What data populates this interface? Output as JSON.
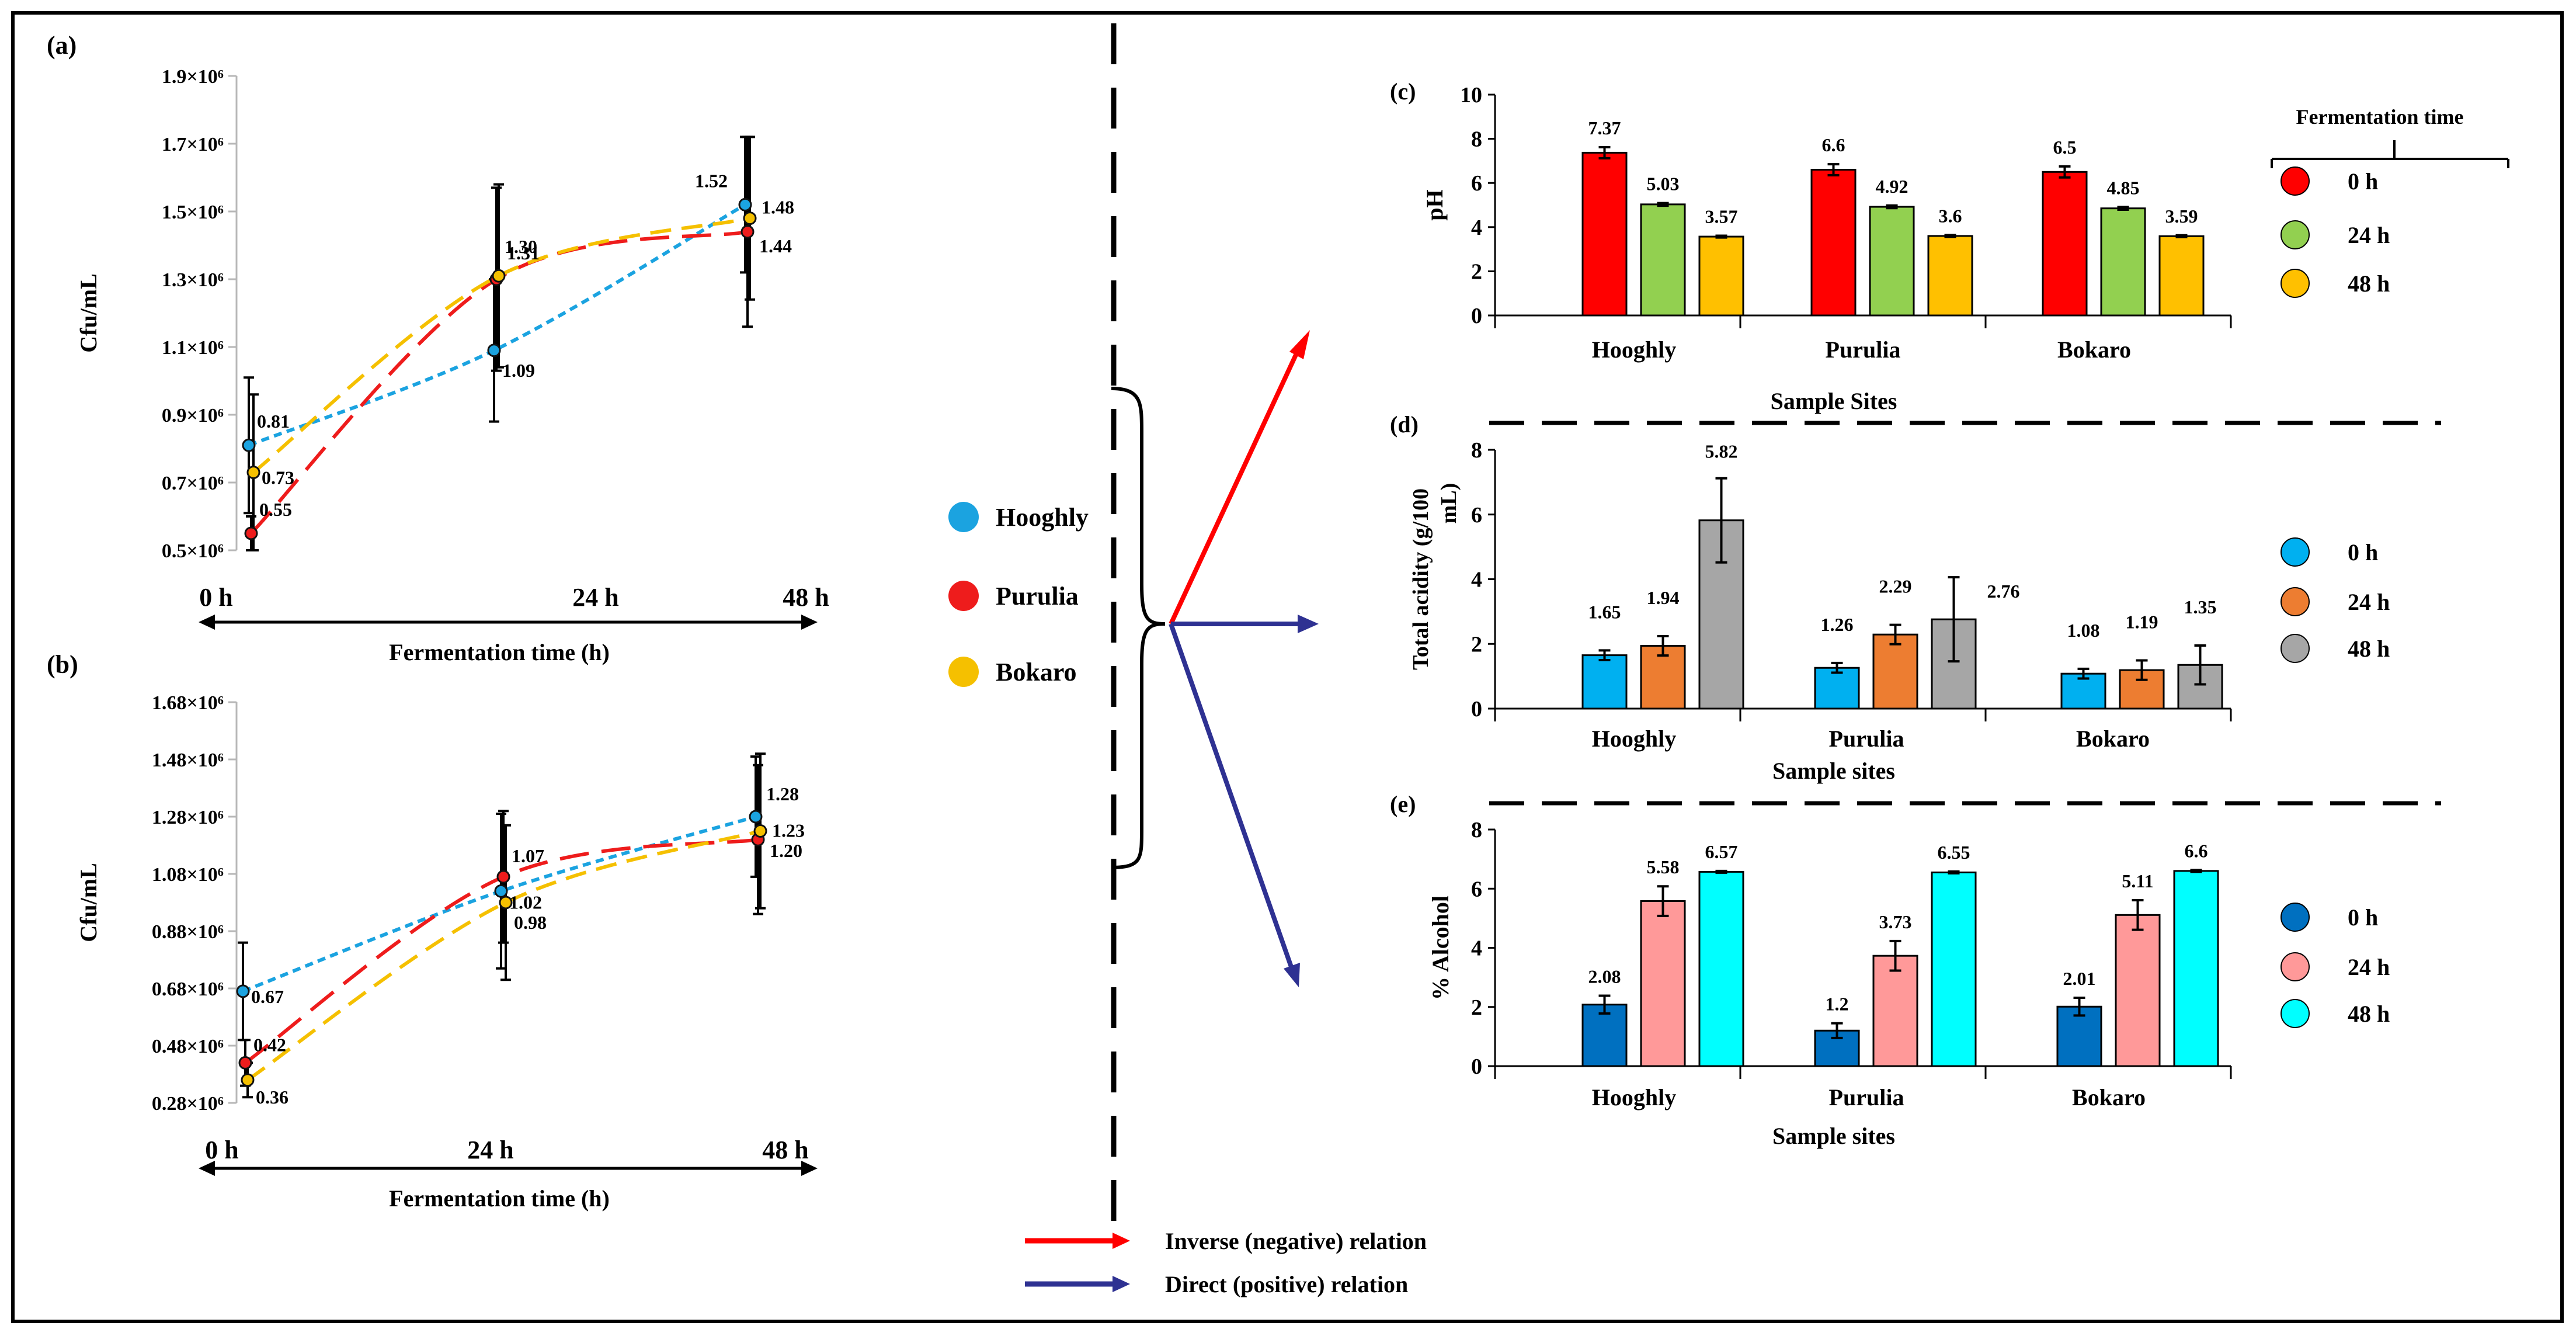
{
  "colors": {
    "hooghly": "#1ba3e0",
    "purulia": "#ee1c1c",
    "bokaro": "#f5c000",
    "ph0": "#ff0000",
    "ph24": "#92d050",
    "ph48": "#ffc000",
    "ta0": "#00b0f0",
    "ta24": "#ed7d31",
    "ta48": "#a6a6a6",
    "al0": "#0070c0",
    "al24": "#ff9999",
    "al48": "#00ffff",
    "inverse": "#ff0000",
    "direct": "#2e3192"
  },
  "site_legend": [
    "Hooghly",
    "Purulia",
    "Bokaro"
  ],
  "relations": {
    "inverse": "Inverse (negative) relation",
    "direct": "Direct (positive) relation"
  },
  "chart_data": [
    {
      "panel": "(a)",
      "type": "line",
      "ylabel": "Cfu/mL",
      "xlabel": "Fermentation time (h)",
      "categories": [
        "0 h",
        "24 h",
        "48 h"
      ],
      "ytick_labels": [
        "0.5×10⁶",
        "0.7×10⁶",
        "0.9×10⁶",
        "1.1×10⁶",
        "1.3×10⁶",
        "1.5×10⁶",
        "1.7×10⁶",
        "1.9×10⁶"
      ],
      "ylim": [
        0.5,
        1.9
      ],
      "series": [
        {
          "name": "Hooghly",
          "values": [
            0.81,
            1.09,
            1.52
          ],
          "labels": [
            "0.81",
            "1.09",
            "1.52"
          ],
          "err": [
            0.2,
            0.21,
            0.2
          ]
        },
        {
          "name": "Purulia",
          "values": [
            0.55,
            1.3,
            1.44
          ],
          "labels": [
            "0.55",
            "1.30",
            "1.44"
          ],
          "err": [
            0.05,
            0.27,
            0.28
          ]
        },
        {
          "name": "Bokaro",
          "values": [
            0.73,
            1.31,
            1.48
          ],
          "labels": [
            "0.73",
            "1.31",
            "1.48"
          ],
          "err": [
            0.23,
            0.27,
            0.24
          ]
        }
      ]
    },
    {
      "panel": "(b)",
      "type": "line",
      "ylabel": "Cfu/mL",
      "xlabel": "Fermentation time (h)",
      "categories": [
        "0 h",
        "24 h",
        "48 h"
      ],
      "ytick_labels": [
        "0.28×10⁶",
        "0.48×10⁶",
        "0.68×10⁶",
        "0.88×10⁶",
        "1.08×10⁶",
        "1.28×10⁶",
        "1.48×10⁶",
        "1.68×10⁶"
      ],
      "ylim": [
        0.28,
        1.68
      ],
      "series": [
        {
          "name": "Hooghly",
          "values": [
            0.67,
            1.02,
            1.28
          ],
          "labels": [
            "0.67",
            "1.02",
            "1.28"
          ],
          "err": [
            0.17,
            0.27,
            0.21
          ]
        },
        {
          "name": "Purulia",
          "values": [
            0.42,
            1.07,
            1.2
          ],
          "labels": [
            "0.42",
            "1.07",
            "1.20"
          ],
          "err": [
            0.08,
            0.23,
            0.26
          ]
        },
        {
          "name": "Bokaro",
          "values": [
            0.36,
            0.98,
            1.23
          ],
          "labels": [
            "0.36",
            "0.98",
            "1.23"
          ],
          "err": [
            0.06,
            0.27,
            0.27
          ]
        }
      ]
    },
    {
      "panel": "(c)",
      "type": "bar",
      "ylabel": "pH",
      "xlabel": "Sample Sites",
      "categories": [
        "Hooghly",
        "Purulia",
        "Bokaro"
      ],
      "ylim": [
        0,
        10
      ],
      "yticks": [
        "0",
        "2",
        "4",
        "6",
        "8",
        "10"
      ],
      "legend_title": "Fermentation time",
      "series": [
        {
          "name": "0 h",
          "values": [
            7.37,
            6.6,
            6.5
          ],
          "labels": [
            "7.37",
            "6.6",
            "6.5"
          ],
          "err": [
            0.25,
            0.25,
            0.25
          ]
        },
        {
          "name": "24 h",
          "values": [
            5.03,
            4.92,
            4.85
          ],
          "labels": [
            "5.03",
            "4.92",
            "4.85"
          ],
          "err": [
            0.06,
            0.06,
            0.06
          ]
        },
        {
          "name": "48 h",
          "values": [
            3.57,
            3.6,
            3.59
          ],
          "labels": [
            "3.57",
            "3.6",
            "3.59"
          ],
          "err": [
            0.04,
            0.04,
            0.04
          ]
        }
      ]
    },
    {
      "panel": "(d)",
      "type": "bar",
      "ylabel": "Total acidity (g/100 mL)",
      "xlabel": "Sample sites",
      "categories": [
        "Hooghly",
        "Purulia",
        "Bokaro"
      ],
      "ylim": [
        0,
        8
      ],
      "yticks": [
        "0",
        "2",
        "4",
        "6",
        "8"
      ],
      "series": [
        {
          "name": "0 h",
          "values": [
            1.65,
            1.26,
            1.08
          ],
          "labels": [
            "1.65",
            "1.26",
            "1.08"
          ],
          "err": [
            0.15,
            0.15,
            0.15
          ]
        },
        {
          "name": "24 h",
          "values": [
            1.94,
            2.29,
            1.19
          ],
          "labels": [
            "1.94",
            "2.29",
            "1.19"
          ],
          "err": [
            0.3,
            0.3,
            0.3
          ]
        },
        {
          "name": "48 h",
          "values": [
            5.82,
            2.76,
            1.35
          ],
          "labels": [
            "5.82",
            "2.76",
            "1.35"
          ],
          "err": [
            1.3,
            1.3,
            0.6
          ]
        }
      ]
    },
    {
      "panel": "(e)",
      "type": "bar",
      "ylabel": "% Alcohol",
      "xlabel": "Sample sites",
      "categories": [
        "Hooghly",
        "Purulia",
        "Bokaro"
      ],
      "ylim": [
        0,
        8
      ],
      "yticks": [
        "0",
        "2",
        "4",
        "6",
        "8"
      ],
      "series": [
        {
          "name": "0 h",
          "values": [
            2.08,
            1.2,
            2.01
          ],
          "labels": [
            "2.08",
            "1.2",
            "2.01"
          ],
          "err": [
            0.3,
            0.25,
            0.3
          ]
        },
        {
          "name": "24 h",
          "values": [
            5.58,
            3.73,
            5.11
          ],
          "labels": [
            "5.58",
            "3.73",
            "5.11"
          ],
          "err": [
            0.5,
            0.5,
            0.5
          ]
        },
        {
          "name": "48 h",
          "values": [
            6.57,
            6.55,
            6.6
          ],
          "labels": [
            "6.57",
            "6.55",
            "6.6"
          ],
          "err": [
            0.03,
            0.03,
            0.03
          ]
        }
      ]
    }
  ]
}
